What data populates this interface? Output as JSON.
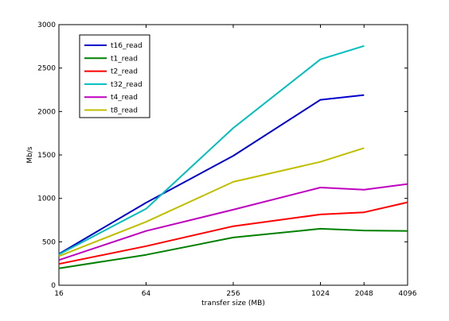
{
  "chart_data": {
    "type": "line",
    "xlabel": "transfer size (MB)",
    "ylabel": "Mb/s",
    "x_scale": "log2",
    "xlim": [
      16,
      4096
    ],
    "ylim": [
      0,
      3000
    ],
    "x_ticks": [
      16,
      64,
      256,
      1024,
      2048,
      4096
    ],
    "x_tick_labels": [
      "16",
      "64",
      "256",
      "1024",
      "2048",
      "4096"
    ],
    "y_ticks": [
      0,
      500,
      1000,
      1500,
      2000,
      2500,
      3000
    ],
    "y_tick_labels": [
      "0",
      "500",
      "1000",
      "1500",
      "2000",
      "2500",
      "3000"
    ],
    "grid": false,
    "legend_position": "top-left",
    "series": [
      {
        "name": "t16_read",
        "color": "#0000cc",
        "x": [
          16,
          64,
          256,
          1024,
          2048
        ],
        "values": [
          360,
          950,
          1490,
          2135,
          2190
        ]
      },
      {
        "name": "t1_read",
        "color": "#008000",
        "x": [
          16,
          64,
          256,
          1024,
          2048,
          4096
        ],
        "values": [
          195,
          350,
          550,
          650,
          630,
          625
        ]
      },
      {
        "name": "t2_read",
        "color": "#ff0000",
        "x": [
          16,
          64,
          256,
          1024,
          2048,
          4096
        ],
        "values": [
          245,
          450,
          680,
          815,
          840,
          955
        ]
      },
      {
        "name": "t32_read",
        "color": "#00bfbf",
        "x": [
          16,
          64,
          256,
          1024,
          2048
        ],
        "values": [
          355,
          880,
          1810,
          2600,
          2755
        ]
      },
      {
        "name": "t4_read",
        "color": "#bf00bf",
        "x": [
          16,
          64,
          256,
          1024,
          2048,
          4096
        ],
        "values": [
          290,
          625,
          870,
          1125,
          1100,
          1165
        ]
      },
      {
        "name": "t8_read",
        "color": "#bfbf00",
        "x": [
          16,
          64,
          256,
          1024,
          2048
        ],
        "values": [
          335,
          730,
          1190,
          1420,
          1580
        ]
      }
    ]
  }
}
